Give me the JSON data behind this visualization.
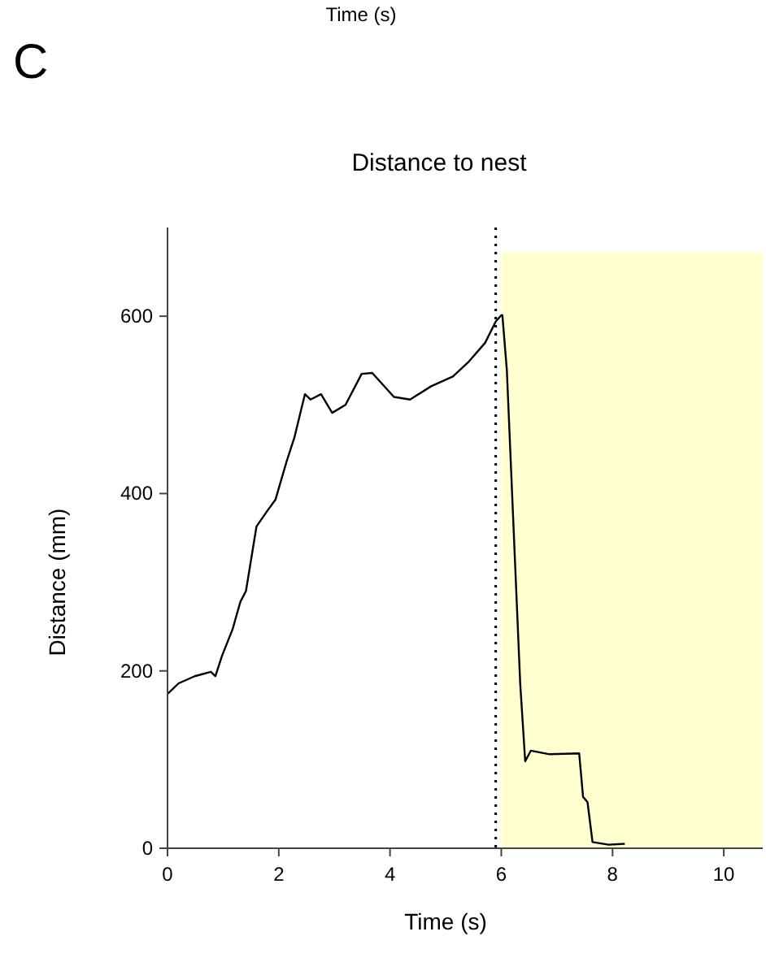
{
  "chart_data": {
    "type": "line",
    "title": "Distance to nest",
    "xlabel": "Time (s)",
    "ylabel": "Distance (mm)",
    "annotations": [
      "C",
      "Time (s)"
    ],
    "xlim": [
      0,
      10.7
    ],
    "ylim": [
      0,
      700
    ],
    "xticks": [
      0,
      2,
      4,
      6,
      8,
      10
    ],
    "yticks": [
      0,
      200,
      400,
      600
    ],
    "grid": false,
    "ref_lines": [
      {
        "axis": "x",
        "value": 5.9,
        "color": "#000000",
        "line_style": "dotted"
      }
    ],
    "bands": [
      {
        "axis": "x",
        "from": 6,
        "to": 10.7,
        "color": "#ffffd0"
      }
    ],
    "series": [
      {
        "color": "#000000",
        "x": [
          0,
          0.2,
          0.49,
          0.78,
          0.86,
          0.98,
          1.17,
          1.31,
          1.41,
          1.6,
          1.8,
          1.94,
          2.14,
          2.28,
          2.47,
          2.57,
          2.76,
          2.96,
          3.2,
          3.49,
          3.68,
          4.07,
          4.36,
          4.74,
          5.13,
          5.42,
          5.71,
          5.9,
          6.0,
          6.02,
          6.1,
          6.34,
          6.43,
          6.53,
          6.87,
          7.4,
          7.47,
          7.55,
          7.64,
          7.93,
          8.22
        ],
        "values": [
          174,
          186,
          194,
          199,
          194,
          217,
          247,
          278,
          290,
          363,
          381,
          393,
          436,
          463,
          512,
          506,
          512,
          491,
          500,
          535,
          536,
          509,
          506,
          521,
          532,
          549,
          570,
          594,
          601,
          601,
          539,
          186,
          98,
          110,
          106,
          107,
          58,
          52,
          7,
          4,
          5
        ]
      }
    ]
  }
}
